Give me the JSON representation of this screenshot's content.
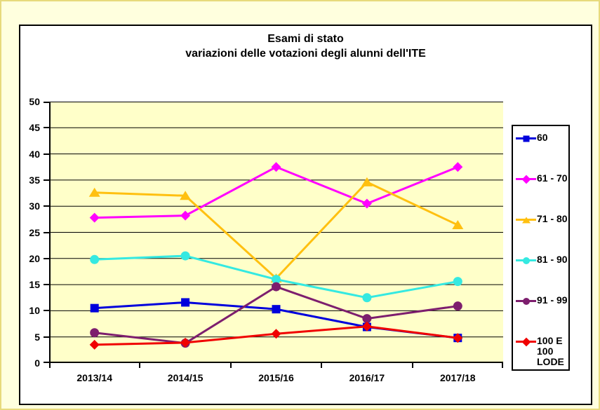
{
  "page": {
    "background": "#FFFFDE",
    "page_border_color": "#E7DA7C",
    "chart_background": "#FFFFFF",
    "plot_background": "#FFFFC9",
    "axis_color": "#000000",
    "text_color": "#000000"
  },
  "chart_data": {
    "type": "line",
    "title": "Esami di stato",
    "subtitle": "variazioni delle votazioni degli alunni dell'ITE",
    "categories": [
      "2013/14",
      "2014/15",
      "2015/16",
      "2016/17",
      "2017/18"
    ],
    "series": [
      {
        "name": "60",
        "color": "#0000DC",
        "marker": "square",
        "values": [
          10.5,
          11.6,
          10.3,
          6.9,
          4.8
        ]
      },
      {
        "name": "61 - 70",
        "color": "#FF00FF",
        "marker": "diamond",
        "values": [
          27.8,
          28.2,
          37.5,
          30.5,
          37.5
        ]
      },
      {
        "name": "71 - 80",
        "color": "#FFC010",
        "marker": "triangle",
        "values": [
          32.6,
          32.0,
          16.2,
          34.6,
          26.4
        ]
      },
      {
        "name": "81 - 90",
        "color": "#35E9E1",
        "marker": "circle",
        "values": [
          19.8,
          20.5,
          16.0,
          12.5,
          15.6
        ]
      },
      {
        "name": "91 - 99",
        "color": "#7D1E6E",
        "marker": "circle",
        "values": [
          5.8,
          3.8,
          14.6,
          8.5,
          10.9
        ]
      },
      {
        "name": "100 E 100 LODE",
        "color": "#F00000",
        "marker": "diamond",
        "values": [
          3.5,
          3.9,
          5.6,
          7.0,
          4.8
        ]
      }
    ],
    "ylim": [
      0,
      50
    ],
    "ytick_step": 5,
    "ytick_labels": [
      "0",
      "5",
      "10",
      "15",
      "20",
      "25",
      "30",
      "35",
      "40",
      "45",
      "50"
    ],
    "grid": "horizontal",
    "legend_position": "right"
  }
}
